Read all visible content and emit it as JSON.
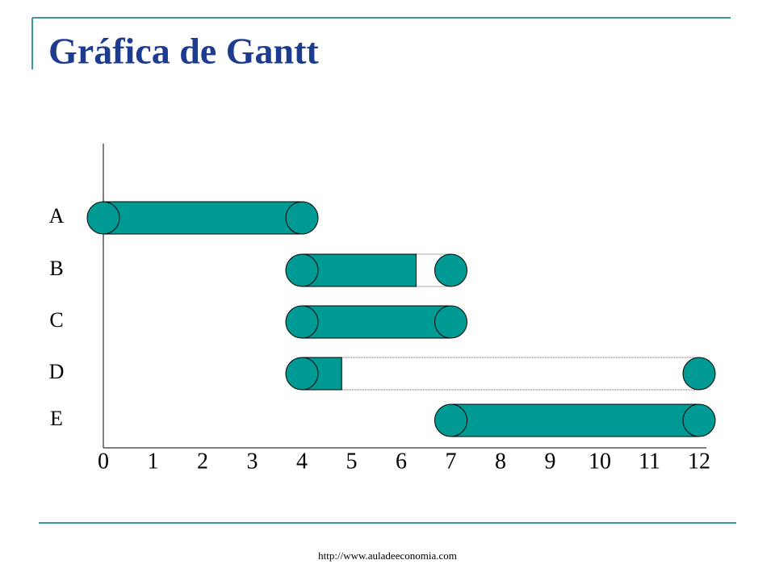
{
  "chart_data": {
    "type": "gantt",
    "title": "Gráfica de Gantt",
    "tasks": [
      {
        "name": "A",
        "start": 0,
        "end": 4
      },
      {
        "name": "B",
        "start": 4,
        "end": 6.3,
        "slack_end": 7
      },
      {
        "name": "C",
        "start": 4,
        "end": 7
      },
      {
        "name": "D",
        "start": 4,
        "end": 4.8,
        "slack_end": 12
      },
      {
        "name": "E",
        "start": 7,
        "end": 12
      }
    ],
    "color": "#009a94",
    "xlim": [
      0,
      12
    ],
    "xticks": [
      0,
      1,
      2,
      3,
      4,
      5,
      6,
      7,
      8,
      9,
      10,
      11,
      12
    ]
  },
  "footer": "http://www.auladeeconomia.com"
}
